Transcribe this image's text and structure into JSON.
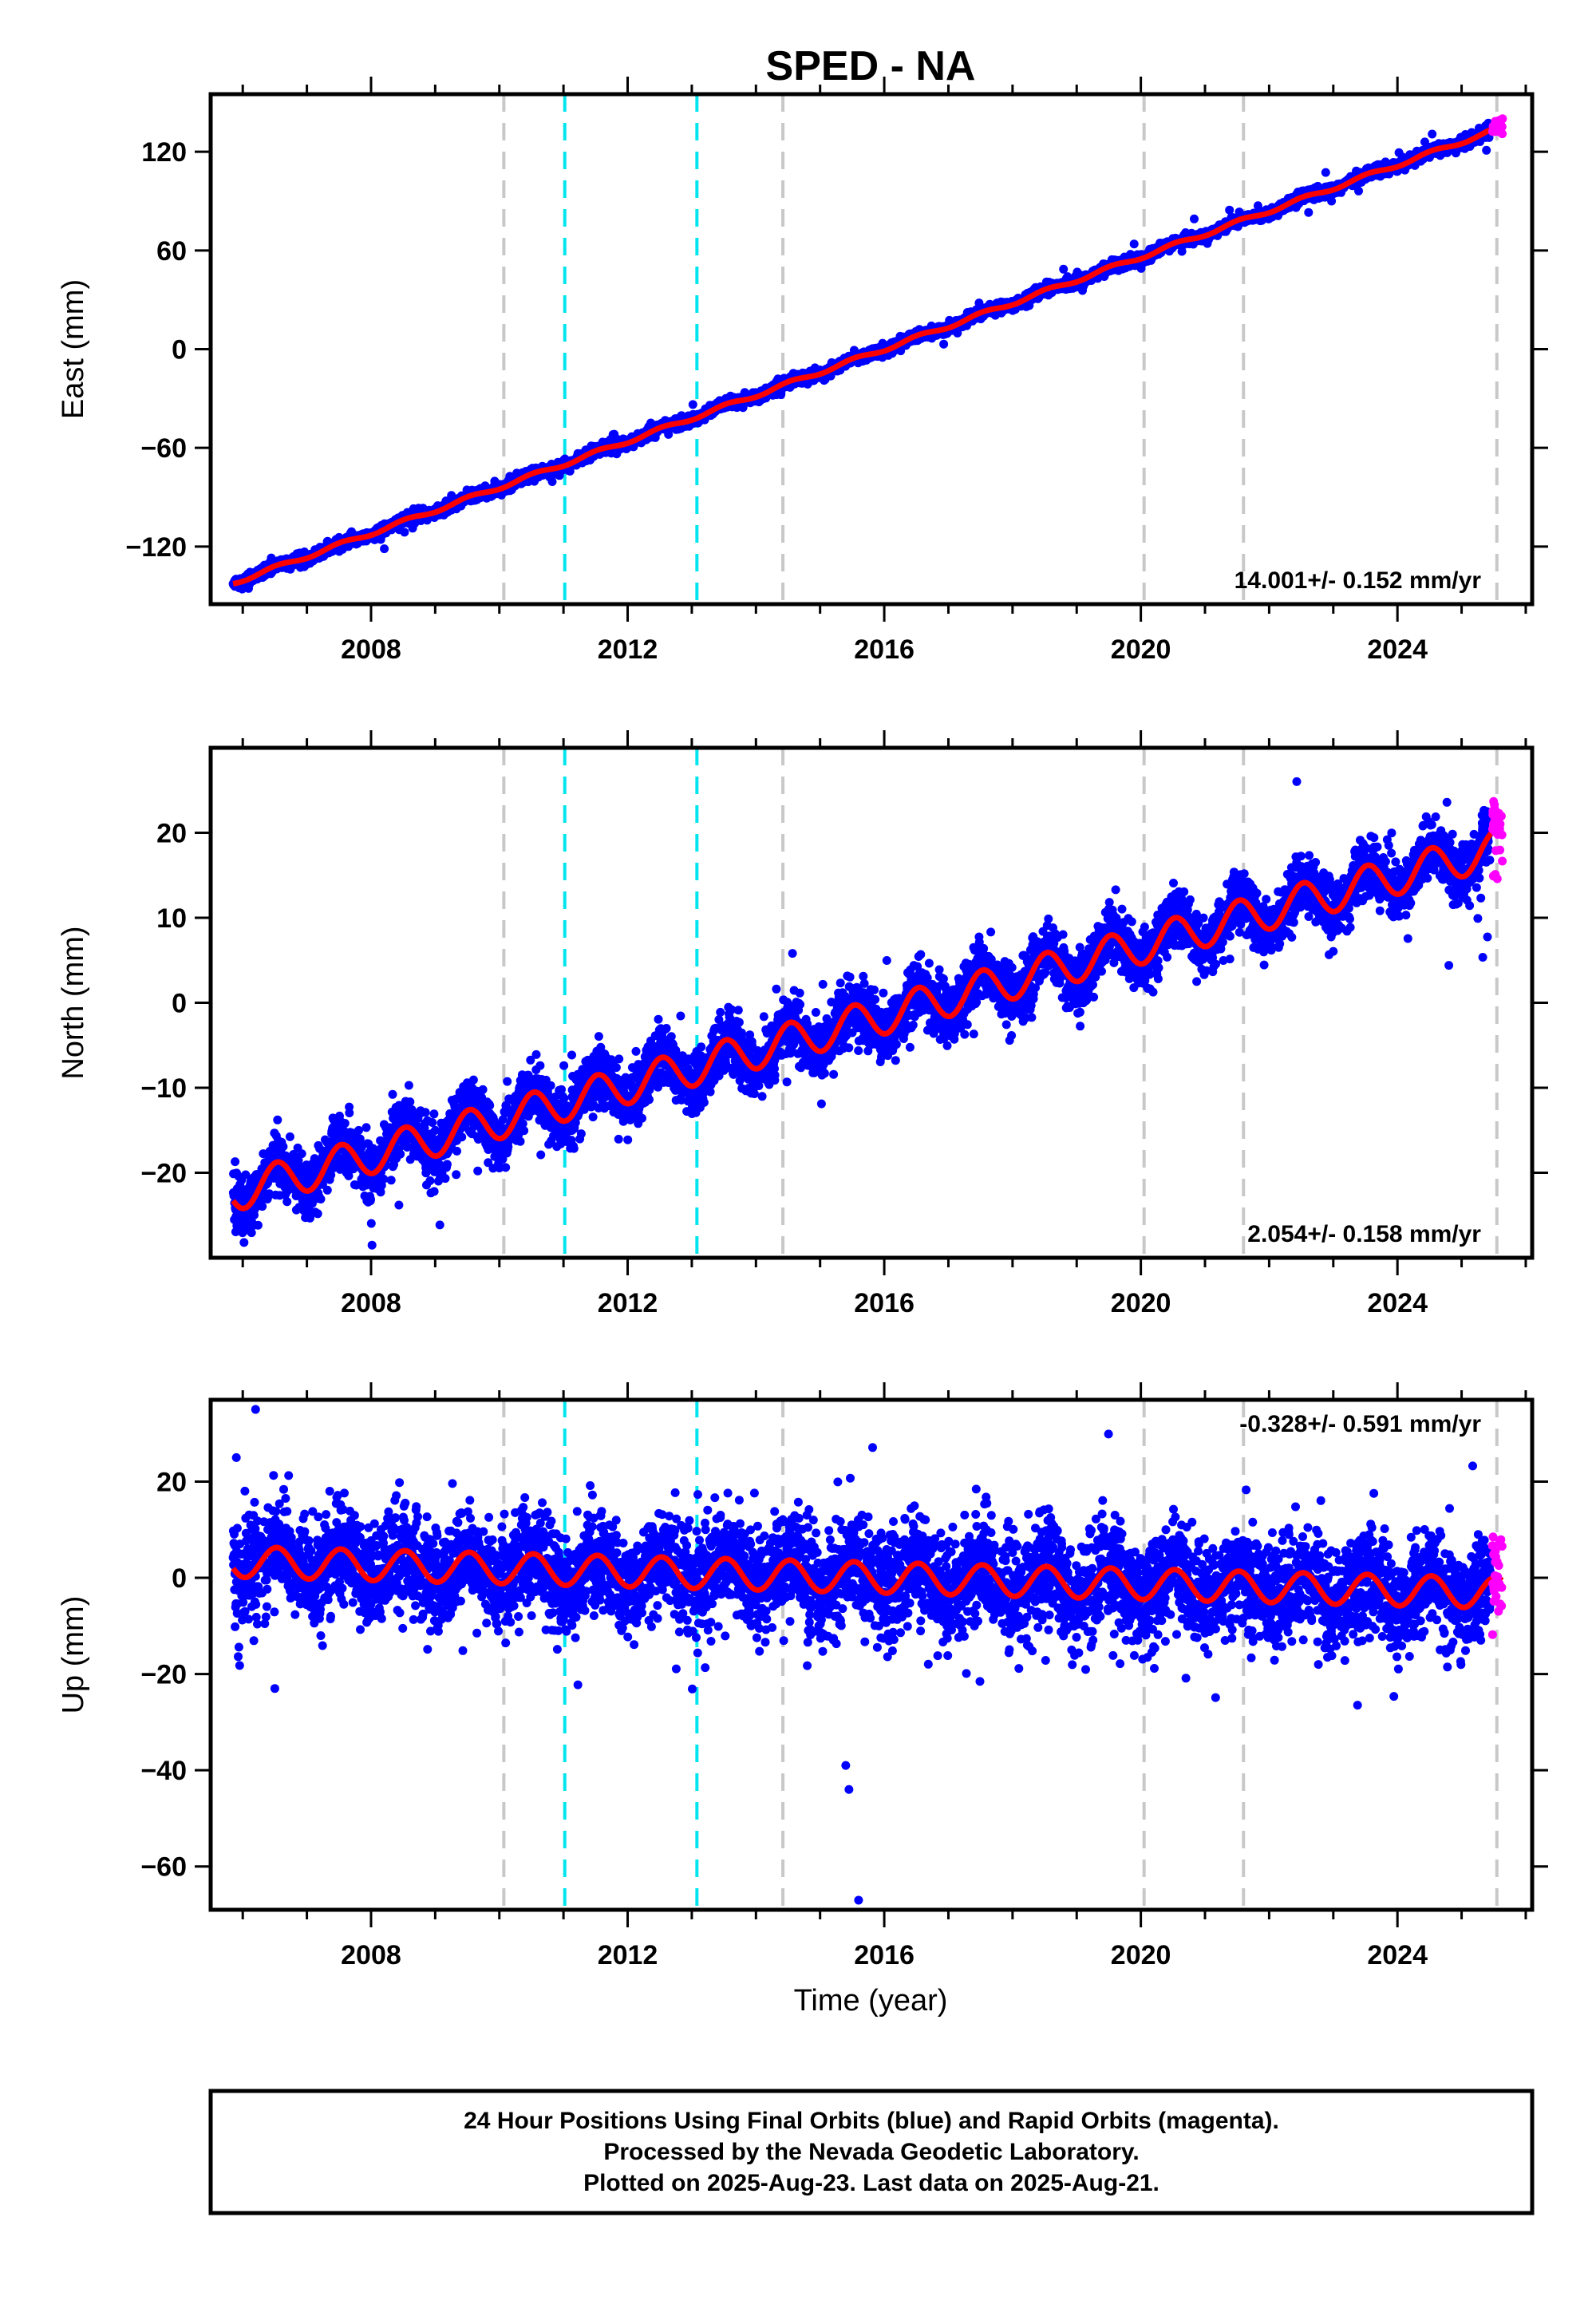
{
  "title": "SPED - NA",
  "xlabel": "Time (year)",
  "footer": {
    "line1": "24 Hour Positions Using Final Orbits (blue) and Rapid Orbits (magenta).",
    "line2": "Processed by the Nevada Geodetic Laboratory.",
    "line3": "Plotted on 2025-Aug-23. Last data on 2025-Aug-21."
  },
  "colors": {
    "final_orbits": "#0000ff",
    "rapid_orbits": "#ff00ff",
    "model_fit": "#ff0000",
    "equipment_change": "#c8c8c8",
    "event_line": "#00e5ee"
  },
  "chart_data": [
    {
      "type": "scatter",
      "ylabel": "East (mm)",
      "xlim": [
        2005.5,
        2026.1
      ],
      "ylim": [
        -155,
        155
      ],
      "xticks": [
        2008,
        2012,
        2016,
        2020,
        2024
      ],
      "yticks": [
        -120,
        -60,
        0,
        60,
        120
      ],
      "rate_label": "14.001+/- 0.152 mm/yr",
      "trend": {
        "rate": 14.0,
        "value_at_2016": 0,
        "seasonal_amplitude": 1.2,
        "noise": 1.6
      },
      "final_range": [
        2005.85,
        2025.45
      ],
      "rapid_range": [
        2025.48,
        2025.64
      ],
      "rapid_spread": 5,
      "gray_lines": [
        2010.07,
        2014.42,
        2020.05,
        2021.6,
        2025.55
      ],
      "cyan_lines": [
        2011.02,
        2013.08
      ]
    },
    {
      "type": "scatter",
      "ylabel": "North (mm)",
      "xlim": [
        2005.5,
        2026.1
      ],
      "ylim": [
        -30,
        30
      ],
      "xticks": [
        2008,
        2012,
        2016,
        2020,
        2024
      ],
      "yticks": [
        -20,
        -10,
        0,
        10,
        20
      ],
      "rate_label": "2.054+/- 0.158 mm/yr",
      "trend": {
        "rate": 2.054,
        "value_at_2016": -1.5,
        "seasonal_amplitude": 2.2,
        "noise": 1.7
      },
      "final_range": [
        2005.85,
        2025.45
      ],
      "rapid_range": [
        2025.48,
        2025.64
      ],
      "rapid_spread": 6,
      "gray_lines": [
        2010.07,
        2014.42,
        2020.05,
        2021.6,
        2025.55
      ],
      "cyan_lines": [
        2011.02,
        2013.08
      ]
    },
    {
      "type": "scatter",
      "ylabel": "Up (mm)",
      "xlim": [
        2005.5,
        2026.1
      ],
      "ylim": [
        -69,
        37
      ],
      "xticks": [
        2008,
        2012,
        2016,
        2020,
        2024
      ],
      "yticks": [
        -60,
        -40,
        -20,
        0,
        20
      ],
      "rate_label": "-0.328+/- 0.591 mm/yr",
      "trend": {
        "rate": -0.328,
        "value_at_2016": 0,
        "seasonal_amplitude": 3.2,
        "noise": 5.2
      },
      "final_range": [
        2005.85,
        2025.45
      ],
      "rapid_range": [
        2025.48,
        2025.64
      ],
      "rapid_spread": 12,
      "gray_lines": [
        2010.07,
        2014.42,
        2020.05,
        2021.6,
        2025.55
      ],
      "cyan_lines": [
        2011.02,
        2013.08
      ],
      "outliers": [
        {
          "x": 2015.6,
          "y": -67
        },
        {
          "x": 2015.45,
          "y": -44
        },
        {
          "x": 2015.4,
          "y": -39
        },
        {
          "x": 2006.2,
          "y": 35
        },
        {
          "x": 2006.5,
          "y": -23
        },
        {
          "x": 2005.9,
          "y": 25
        }
      ]
    }
  ]
}
